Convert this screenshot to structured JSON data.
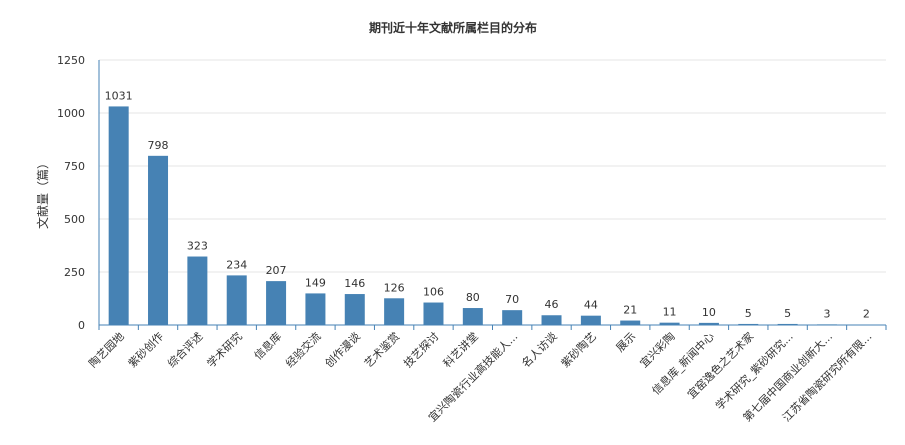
{
  "chart_data": {
    "type": "bar",
    "title": "期刊近十年文献所属栏目的分布",
    "xlabel": "",
    "ylabel": "文献量（篇）",
    "ylim": [
      0,
      1250
    ],
    "yticks": [
      0,
      250,
      500,
      750,
      1000,
      1250
    ],
    "grid": true,
    "bar_color": "#4682b4",
    "categories": [
      "陶艺园地",
      "紫砂创作",
      "综合评述",
      "学术研究",
      "信息库",
      "经验交流",
      "创作漫谈",
      "艺术鉴赏",
      "技艺探讨",
      "科艺讲堂",
      "宜兴陶瓷行业高技能人...",
      "名人访谈",
      "紫砂陶艺",
      "展示",
      "宜兴彩陶",
      "信息库_新闻中心",
      "宜窑逸色之艺术家",
      "学术研究_紫砂研究...",
      "第七届中国商业创新大...",
      "江苏省陶瓷研究所有限..."
    ],
    "values": [
      1031,
      798,
      323,
      234,
      207,
      149,
      146,
      126,
      106,
      80,
      70,
      46,
      44,
      21,
      11,
      10,
      5,
      5,
      3,
      2
    ]
  }
}
